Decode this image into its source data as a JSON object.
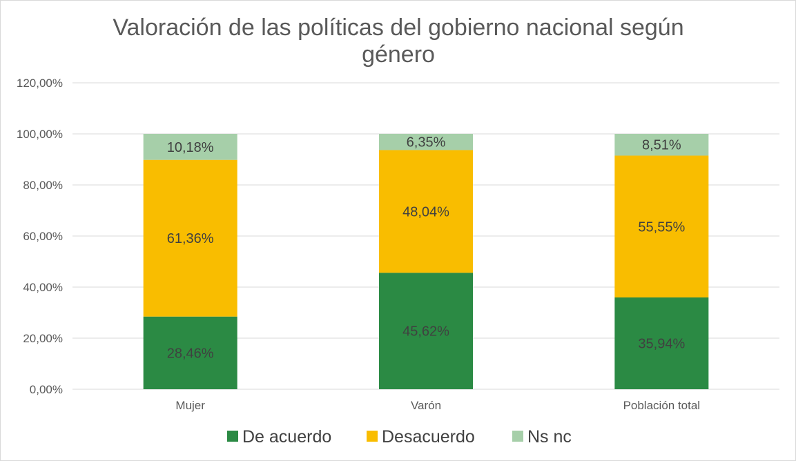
{
  "chart_data": {
    "type": "bar",
    "stacked": true,
    "title_lines": [
      "Valoración de las políticas del gobierno nacional según",
      "género"
    ],
    "xlabel": "",
    "ylabel": "",
    "categories": [
      "Mujer",
      "Varón",
      "Población total"
    ],
    "ylim": [
      0,
      120
    ],
    "yticks": [
      0,
      20,
      40,
      60,
      80,
      100,
      120
    ],
    "ytick_labels": [
      "0,00%",
      "20,00%",
      "40,00%",
      "60,00%",
      "80,00%",
      "100,00%",
      "120,00%"
    ],
    "grid": true,
    "legend_position": "bottom",
    "series": [
      {
        "name": "De acuerdo",
        "color": "#2b8a44",
        "values": [
          28.46,
          45.62,
          35.94
        ],
        "labels": [
          "28,46%",
          "45,62%",
          "35,94%"
        ]
      },
      {
        "name": "Desacuerdo",
        "color": "#f9bd00",
        "values": [
          61.36,
          48.04,
          55.55
        ],
        "labels": [
          "61,36%",
          "48,04%",
          "55,55%"
        ]
      },
      {
        "name": "Ns nc",
        "color": "#a6cfa9",
        "values": [
          10.18,
          6.35,
          8.51
        ],
        "labels": [
          "10,18%",
          "6,35%",
          "8,51%"
        ]
      }
    ]
  }
}
